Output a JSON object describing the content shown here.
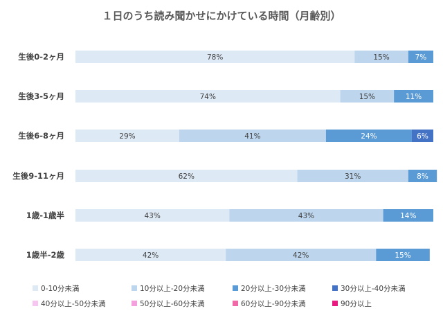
{
  "chart_data": {
    "type": "bar",
    "orientation": "horizontal",
    "stacked": true,
    "title": "１日のうち読み聞かせにかけている時間（月齢別）",
    "categories": [
      "生後0-2ヶ月",
      "生後3-5ヶ月",
      "生後6-8ヶ月",
      "生後9-11ヶ月",
      "1歳-1歳半",
      "1歳半-2歳"
    ],
    "series": [
      {
        "name": "0-10分未満",
        "color": "#dde9f5",
        "values": [
          78,
          74,
          29,
          62,
          43,
          42
        ]
      },
      {
        "name": "10分以上-20分未満",
        "color": "#bdd6ee",
        "values": [
          15,
          15,
          41,
          31,
          43,
          42
        ]
      },
      {
        "name": "20分以上-30分未満",
        "color": "#5b9bd5",
        "values": [
          7,
          11,
          24,
          8,
          14,
          15
        ]
      },
      {
        "name": "30分以上-40分未満",
        "color": "#4472c4",
        "values": [
          0,
          0,
          6,
          0,
          0,
          0
        ]
      },
      {
        "name": "40分以上-50分未満",
        "color": "#f6c6f0",
        "values": [
          0,
          0,
          0,
          0,
          0,
          0
        ]
      },
      {
        "name": "50分以上-60分未満",
        "color": "#f4a0dc",
        "values": [
          0,
          0,
          0,
          0,
          0,
          0
        ]
      },
      {
        "name": "60分以上-90分未満",
        "color": "#f06aa8",
        "values": [
          0,
          0,
          0,
          0,
          0,
          0
        ]
      },
      {
        "name": "90分以上",
        "color": "#e8197f",
        "values": [
          0,
          0,
          0,
          0,
          0,
          0
        ]
      }
    ],
    "value_suffix": "%",
    "xlim": [
      0,
      100
    ],
    "legend_position": "bottom",
    "grid": false
  }
}
